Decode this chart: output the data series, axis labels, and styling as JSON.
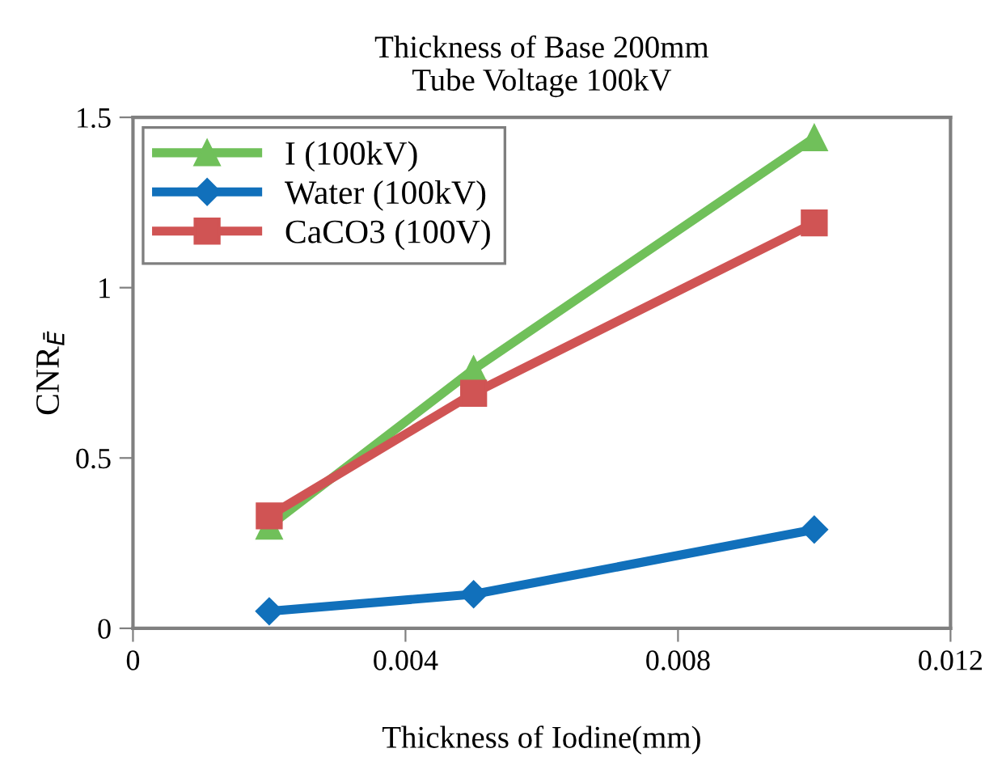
{
  "chart_data": {
    "type": "line",
    "title": "Thickness of Base 200mm\nTube Voltage 100kV",
    "xlabel": "Thickness of Iodine(mm)",
    "ylabel": "CNR$_{Ē}$",
    "x": [
      0.002,
      0.005,
      0.01
    ],
    "series": [
      {
        "name": "I (100kV)",
        "color": "#70c05a",
        "marker": "triangle",
        "values": [
          0.3,
          0.76,
          1.44
        ]
      },
      {
        "name": "Water (100kV)",
        "color": "#1170bb",
        "marker": "diamond",
        "values": [
          0.05,
          0.1,
          0.29
        ]
      },
      {
        "name": "CaCO3 (100V)",
        "color": "#d05454",
        "marker": "square",
        "values": [
          0.33,
          0.69,
          1.19
        ]
      }
    ],
    "xlim": [
      0,
      0.012
    ],
    "xticks": [
      0,
      0.004,
      0.008,
      0.012
    ],
    "ylim": [
      0,
      1.5
    ],
    "yticks": [
      0,
      0.5,
      1,
      1.5
    ],
    "grid": false,
    "legend": "top left",
    "line_style": "solid"
  }
}
